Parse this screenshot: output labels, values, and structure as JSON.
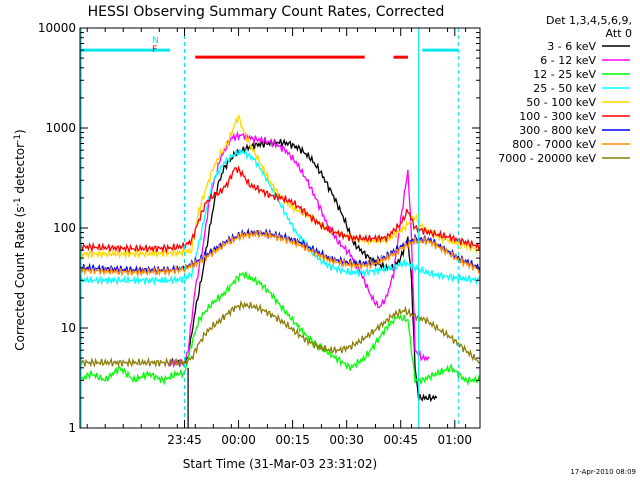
{
  "chart_data": {
    "type": "line",
    "title": "HESSI Observing Summary Count Rates, Corrected",
    "xlabel": "Start Time (31-Mar-03 23:31:02)",
    "ylabel_main": "Corrected Count Rate (s",
    "ylabel_sup1": "-1",
    "ylabel_mid": " detector",
    "ylabel_sup2": "-1",
    "ylabel_end": ")",
    "yscale": "log",
    "ylim": [
      1,
      10000
    ],
    "xlim_minutes": [
      -15,
      96
    ],
    "x_ticks": [
      {
        "minute": 14,
        "label": "23:45"
      },
      {
        "minute": 29,
        "label": "00:00"
      },
      {
        "minute": 44,
        "label": "00:15"
      },
      {
        "minute": 59,
        "label": "00:30"
      },
      {
        "minute": 74,
        "label": "00:45"
      },
      {
        "minute": 89,
        "label": "01:00"
      }
    ],
    "y_ticks": [
      {
        "value": 1,
        "label": "1"
      },
      {
        "value": 10,
        "label": "10"
      },
      {
        "value": 100,
        "label": "100"
      },
      {
        "value": 1000,
        "label": "1000"
      },
      {
        "value": 10000,
        "label": "10000"
      }
    ],
    "legend": {
      "header": [
        "Det 1,3,4,5,6,9,",
        "Att 0"
      ],
      "placement": "right"
    },
    "flags": {
      "N": "N",
      "F": "F"
    },
    "timestamp": "17-Apr-2010 08:09",
    "series": [
      {
        "name": "3 - 6 keV",
        "color": "#000000",
        "points": [
          [
            10,
            4.5
          ],
          [
            14,
            4.5
          ],
          [
            15,
            5
          ],
          [
            17,
            15
          ],
          [
            19,
            35
          ],
          [
            21,
            100
          ],
          [
            23,
            250
          ],
          [
            25,
            400
          ],
          [
            28,
            550
          ],
          [
            31,
            620
          ],
          [
            34,
            680
          ],
          [
            37,
            700
          ],
          [
            40,
            720
          ],
          [
            43,
            700
          ],
          [
            46,
            620
          ],
          [
            49,
            500
          ],
          [
            52,
            350
          ],
          [
            55,
            220
          ],
          [
            58,
            130
          ],
          [
            61,
            70
          ],
          [
            64,
            55
          ],
          [
            67,
            45
          ],
          [
            70,
            40
          ],
          [
            72,
            40
          ],
          [
            74,
            50
          ],
          [
            76,
            80
          ],
          [
            77,
            30
          ],
          [
            78,
            4
          ],
          [
            79,
            2
          ],
          [
            84,
            2
          ]
        ]
      },
      {
        "name": "6 - 12 keV",
        "color": "#ff00ff",
        "points": [
          [
            10,
            4.5
          ],
          [
            14,
            4.5
          ],
          [
            15,
            6
          ],
          [
            17,
            25
          ],
          [
            19,
            60
          ],
          [
            21,
            200
          ],
          [
            24,
            500
          ],
          [
            27,
            800
          ],
          [
            30,
            850
          ],
          [
            33,
            780
          ],
          [
            36,
            750
          ],
          [
            39,
            700
          ],
          [
            42,
            600
          ],
          [
            45,
            450
          ],
          [
            48,
            300
          ],
          [
            51,
            180
          ],
          [
            54,
            100
          ],
          [
            57,
            70
          ],
          [
            60,
            55
          ],
          [
            63,
            35
          ],
          [
            66,
            20
          ],
          [
            68,
            16
          ],
          [
            70,
            20
          ],
          [
            72,
            35
          ],
          [
            74,
            120
          ],
          [
            76,
            380
          ],
          [
            77,
            80
          ],
          [
            78,
            6
          ],
          [
            80,
            5
          ],
          [
            82,
            5
          ]
        ]
      },
      {
        "name": "12 - 25 keV",
        "color": "#00ff00",
        "points": [
          [
            -15,
            3
          ],
          [
            -12,
            3.5
          ],
          [
            -8,
            3
          ],
          [
            -4,
            4
          ],
          [
            0,
            3
          ],
          [
            4,
            3.5
          ],
          [
            8,
            3
          ],
          [
            12,
            3.5
          ],
          [
            14,
            3.5
          ],
          [
            16,
            7
          ],
          [
            18,
            12
          ],
          [
            20,
            15
          ],
          [
            22,
            18
          ],
          [
            25,
            22
          ],
          [
            28,
            30
          ],
          [
            30,
            35
          ],
          [
            32,
            32
          ],
          [
            35,
            28
          ],
          [
            38,
            22
          ],
          [
            41,
            16
          ],
          [
            44,
            12
          ],
          [
            47,
            9
          ],
          [
            50,
            7
          ],
          [
            53,
            6
          ],
          [
            56,
            5
          ],
          [
            58,
            4.5
          ],
          [
            60,
            4
          ],
          [
            64,
            5
          ],
          [
            67,
            7
          ],
          [
            70,
            10
          ],
          [
            73,
            13
          ],
          [
            76,
            12
          ],
          [
            78,
            3
          ],
          [
            80,
            3
          ],
          [
            84,
            3.5
          ],
          [
            88,
            4
          ],
          [
            92,
            3
          ],
          [
            96,
            3
          ]
        ]
      },
      {
        "name": "25 - 50 keV",
        "color": "#00ffff",
        "points": [
          [
            -15,
            30
          ],
          [
            0,
            30
          ],
          [
            10,
            30
          ],
          [
            14,
            31
          ],
          [
            16,
            35
          ],
          [
            18,
            70
          ],
          [
            20,
            150
          ],
          [
            22,
            300
          ],
          [
            25,
            450
          ],
          [
            28,
            550
          ],
          [
            30,
            580
          ],
          [
            33,
            500
          ],
          [
            36,
            350
          ],
          [
            39,
            220
          ],
          [
            42,
            140
          ],
          [
            45,
            90
          ],
          [
            48,
            65
          ],
          [
            51,
            50
          ],
          [
            54,
            42
          ],
          [
            57,
            38
          ],
          [
            60,
            36
          ],
          [
            64,
            36
          ],
          [
            68,
            38
          ],
          [
            72,
            40
          ],
          [
            75,
            45
          ],
          [
            78,
            40
          ],
          [
            82,
            35
          ],
          [
            88,
            32
          ],
          [
            96,
            30
          ]
        ]
      },
      {
        "name": "50 - 100 keV",
        "color": "#ffd700",
        "points": [
          [
            -15,
            55
          ],
          [
            0,
            55
          ],
          [
            10,
            56
          ],
          [
            14,
            57
          ],
          [
            16,
            60
          ],
          [
            18,
            150
          ],
          [
            20,
            250
          ],
          [
            22,
            400
          ],
          [
            24,
            550
          ],
          [
            26,
            700
          ],
          [
            28,
            1100
          ],
          [
            29,
            1300
          ],
          [
            30,
            1000
          ],
          [
            32,
            700
          ],
          [
            35,
            450
          ],
          [
            38,
            280
          ],
          [
            41,
            200
          ],
          [
            44,
            160
          ],
          [
            47,
            140
          ],
          [
            50,
            120
          ],
          [
            53,
            100
          ],
          [
            56,
            90
          ],
          [
            60,
            80
          ],
          [
            65,
            75
          ],
          [
            70,
            75
          ],
          [
            75,
            100
          ],
          [
            78,
            130
          ],
          [
            80,
            100
          ],
          [
            85,
            80
          ],
          [
            90,
            70
          ],
          [
            96,
            60
          ]
        ]
      },
      {
        "name": "100 - 300 keV",
        "color": "#ff0000",
        "points": [
          [
            -15,
            65
          ],
          [
            0,
            62
          ],
          [
            10,
            63
          ],
          [
            14,
            66
          ],
          [
            16,
            75
          ],
          [
            18,
            120
          ],
          [
            20,
            180
          ],
          [
            22,
            210
          ],
          [
            24,
            230
          ],
          [
            26,
            280
          ],
          [
            28,
            400
          ],
          [
            30,
            350
          ],
          [
            32,
            270
          ],
          [
            35,
            240
          ],
          [
            38,
            210
          ],
          [
            41,
            200
          ],
          [
            44,
            180
          ],
          [
            47,
            150
          ],
          [
            50,
            120
          ],
          [
            53,
            100
          ],
          [
            56,
            90
          ],
          [
            60,
            80
          ],
          [
            65,
            78
          ],
          [
            70,
            80
          ],
          [
            74,
            110
          ],
          [
            76,
            150
          ],
          [
            78,
            100
          ],
          [
            82,
            90
          ],
          [
            88,
            80
          ],
          [
            92,
            72
          ],
          [
            96,
            65
          ]
        ]
      },
      {
        "name": "300 - 800 keV",
        "color": "#0000ff",
        "points": [
          [
            -15,
            40
          ],
          [
            0,
            38
          ],
          [
            10,
            38
          ],
          [
            14,
            40
          ],
          [
            18,
            48
          ],
          [
            22,
            60
          ],
          [
            26,
            75
          ],
          [
            30,
            87
          ],
          [
            34,
            90
          ],
          [
            38,
            87
          ],
          [
            42,
            80
          ],
          [
            46,
            72
          ],
          [
            50,
            60
          ],
          [
            54,
            50
          ],
          [
            58,
            46
          ],
          [
            62,
            44
          ],
          [
            66,
            45
          ],
          [
            70,
            52
          ],
          [
            74,
            65
          ],
          [
            78,
            78
          ],
          [
            82,
            76
          ],
          [
            86,
            62
          ],
          [
            90,
            50
          ],
          [
            96,
            40
          ]
        ]
      },
      {
        "name": "800 - 7000 keV",
        "color": "#ff8c00",
        "points": [
          [
            -15,
            38
          ],
          [
            0,
            36
          ],
          [
            10,
            37
          ],
          [
            14,
            39
          ],
          [
            18,
            46
          ],
          [
            22,
            57
          ],
          [
            26,
            72
          ],
          [
            30,
            84
          ],
          [
            34,
            87
          ],
          [
            38,
            84
          ],
          [
            42,
            77
          ],
          [
            46,
            68
          ],
          [
            50,
            57
          ],
          [
            54,
            48
          ],
          [
            58,
            44
          ],
          [
            62,
            42
          ],
          [
            66,
            43
          ],
          [
            70,
            50
          ],
          [
            74,
            62
          ],
          [
            78,
            75
          ],
          [
            82,
            73
          ],
          [
            86,
            60
          ],
          [
            90,
            48
          ],
          [
            96,
            38
          ]
        ]
      },
      {
        "name": "7000 - 20000 keV",
        "color": "#8b7d0a",
        "points": [
          [
            -15,
            4.5
          ],
          [
            0,
            4.5
          ],
          [
            10,
            4.5
          ],
          [
            14,
            4.5
          ],
          [
            16,
            5
          ],
          [
            18,
            7
          ],
          [
            20,
            9
          ],
          [
            22,
            10.5
          ],
          [
            24,
            12
          ],
          [
            26,
            14
          ],
          [
            28,
            16
          ],
          [
            30,
            17
          ],
          [
            33,
            16.5
          ],
          [
            36,
            15
          ],
          [
            39,
            13
          ],
          [
            42,
            11
          ],
          [
            45,
            9
          ],
          [
            48,
            7.5
          ],
          [
            51,
            6.5
          ],
          [
            54,
            6
          ],
          [
            57,
            6
          ],
          [
            60,
            6.5
          ],
          [
            63,
            7.5
          ],
          [
            66,
            9
          ],
          [
            69,
            11
          ],
          [
            72,
            13.5
          ],
          [
            75,
            15
          ],
          [
            78,
            13
          ],
          [
            81,
            12
          ],
          [
            84,
            10
          ],
          [
            88,
            8
          ],
          [
            92,
            6
          ],
          [
            96,
            4.5
          ]
        ]
      }
    ],
    "markers": {
      "dashed_cyan_minutes": [
        14,
        90
      ],
      "solid_cyan_minutes": [
        79
      ],
      "solid_black_minutes": [
        15
      ],
      "cyan_bars": [
        [
          -15,
          10
        ],
        [
          80,
          90
        ]
      ],
      "red_bars": [
        [
          17,
          64
        ],
        [
          72,
          76
        ]
      ],
      "bar_level": 6000
    }
  }
}
